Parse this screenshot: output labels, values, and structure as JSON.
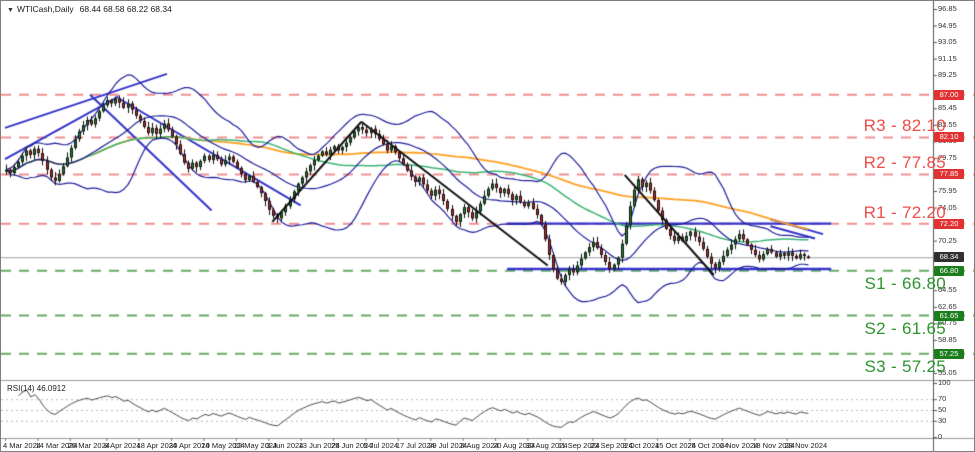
{
  "window": {
    "title_symbol": "WTICash,Daily",
    "title_ohlc": "68.44 68.58 68.22 68.34",
    "dropdown_icon": "▼"
  },
  "colors": {
    "bull_candle": "#1c8a2e",
    "bear_candle": "#cf2626",
    "candle_outline": "#111111",
    "bollinger": "#1f1f9e",
    "sma_fast": "#3cb371",
    "sma_slow": "#ffa022",
    "trendline_blue": "#3333cc",
    "trendline_black": "#111111",
    "resistance_dash": "#f19090",
    "support_dash": "#66ab66",
    "resistance_text": "#ef4d47",
    "support_text": "#2e9430",
    "resistance_badge": "#e03232",
    "support_badge": "#1c7d1c",
    "price_badge": "#303030",
    "current_price_line": "#9aa0a6",
    "rsi_line": "#4d4d4d",
    "axis_line": "#555555"
  },
  "axis": {
    "price_ticks": [
      96.85,
      94.95,
      93.05,
      91.15,
      89.25,
      85.45,
      83.55,
      81.65,
      79.75,
      75.95,
      74.05,
      70.25,
      64.55,
      62.65,
      60.75,
      58.85,
      55.05
    ],
    "badges": [
      {
        "text": "87.00",
        "price": 87.0,
        "type": "resistance"
      },
      {
        "text": "82.10",
        "price": 82.1,
        "type": "resistance"
      },
      {
        "text": "77.85",
        "price": 77.85,
        "type": "resistance"
      },
      {
        "text": "72.20",
        "price": 72.2,
        "type": "resistance"
      },
      {
        "text": "68.34",
        "price": 68.34,
        "type": "price"
      },
      {
        "text": "66.80",
        "price": 66.8,
        "type": "support"
      },
      {
        "text": "61.65",
        "price": 61.65,
        "type": "support"
      },
      {
        "text": "57.25",
        "price": 57.25,
        "type": "support"
      }
    ],
    "date_labels": [
      {
        "text": "4 Mar 2024",
        "index": 0
      },
      {
        "text": "14 Mar 2024",
        "index": 8
      },
      {
        "text": "26 Mar 2024",
        "index": 16
      },
      {
        "text": "8 Apr 2024",
        "index": 25
      },
      {
        "text": "18 Apr 2024",
        "index": 33
      },
      {
        "text": "30 Apr 2024",
        "index": 41
      },
      {
        "text": "10 May 2024",
        "index": 49
      },
      {
        "text": "22 May 2024",
        "index": 57
      },
      {
        "text": "3 Jun 2024",
        "index": 65
      },
      {
        "text": "13 Jun 2024",
        "index": 73
      },
      {
        "text": "25 Jun 2024",
        "index": 81
      },
      {
        "text": "5 Jul 2024",
        "index": 89
      },
      {
        "text": "17 Jul 2024",
        "index": 97
      },
      {
        "text": "29 Jul 2024",
        "index": 105
      },
      {
        "text": "8 Aug 2024",
        "index": 113
      },
      {
        "text": "20 Aug 2024",
        "index": 121
      },
      {
        "text": "30 Aug 2024",
        "index": 129
      },
      {
        "text": "11 Sep 2024",
        "index": 137
      },
      {
        "text": "23 Sep 2024",
        "index": 145
      },
      {
        "text": "3 Oct 2024",
        "index": 153
      },
      {
        "text": "15 Oct 2024",
        "index": 161
      },
      {
        "text": "25 Oct 2024",
        "index": 169
      },
      {
        "text": "6 Nov 2024",
        "index": 177
      },
      {
        "text": "18 Nov 2024",
        "index": 185
      },
      {
        "text": "28 Nov 2024",
        "index": 193
      }
    ]
  },
  "levels": {
    "r3": {
      "label": "R3 - 82.10",
      "price": 82.1,
      "type": "r"
    },
    "r2": {
      "label": "R2 - 77.85",
      "price": 77.85,
      "type": "r"
    },
    "r1": {
      "label": "R1 - 72.20",
      "price": 72.2,
      "type": "r"
    },
    "s1": {
      "label": "S1 - 66.80",
      "price": 66.8,
      "type": "s"
    },
    "s2": {
      "label": "S2 - 61.65",
      "price": 61.65,
      "type": "s"
    },
    "s3": {
      "label": "S3 - 57.25",
      "price": 57.25,
      "type": "s"
    }
  },
  "unlabeled_levels": [
    {
      "price": 87.0,
      "type": "r"
    }
  ],
  "rsi_panel": {
    "label": "RSI(14) 46.0912",
    "period": 14,
    "last_value": 46.0912,
    "scale_ticks": [
      100,
      70,
      50,
      30,
      0
    ],
    "dotted_levels": [
      70,
      50,
      30
    ]
  },
  "chart_data": {
    "type": "candlestick",
    "symbol": "WTI Cash",
    "timeframe": "Daily",
    "title": "WTICash,Daily",
    "last_ohlc": {
      "open": 68.44,
      "high": 68.58,
      "low": 68.22,
      "close": 68.34
    },
    "current_price": 68.34,
    "price_range": [
      55.05,
      96.85
    ],
    "closes": [
      78.4,
      78.0,
      78.7,
      79.3,
      80.0,
      80.6,
      80.1,
      80.8,
      80.3,
      79.4,
      78.4,
      77.5,
      77.1,
      77.9,
      78.8,
      79.8,
      80.9,
      81.9,
      82.8,
      83.5,
      84.1,
      83.6,
      84.3,
      85.1,
      85.8,
      86.4,
      86.0,
      86.6,
      86.1,
      85.5,
      86.0,
      85.3,
      84.6,
      84.0,
      83.3,
      82.6,
      83.2,
      82.5,
      83.1,
      83.7,
      83.0,
      82.2,
      81.3,
      80.2,
      79.2,
      78.5,
      79.2,
      78.7,
      79.4,
      80.0,
      79.5,
      80.1,
      79.6,
      79.0,
      79.5,
      79.9,
      79.3,
      78.6,
      77.9,
      77.2,
      77.7,
      77.0,
      76.4,
      75.7,
      74.8,
      73.8,
      73.1,
      72.8,
      73.5,
      74.2,
      75.0,
      75.9,
      76.8,
      77.5,
      78.2,
      78.9,
      79.5,
      80.0,
      80.5,
      80.1,
      80.7,
      81.1,
      80.6,
      81.0,
      81.5,
      82.1,
      82.8,
      83.3,
      83.0,
      82.6,
      83.1,
      82.5,
      81.9,
      81.3,
      80.6,
      81.1,
      80.4,
      79.7,
      79.0,
      78.3,
      77.6,
      77.0,
      77.5,
      76.7,
      76.0,
      75.4,
      76.1,
      75.6,
      74.8,
      73.9,
      73.1,
      72.4,
      73.3,
      74.1,
      73.5,
      72.8,
      73.6,
      74.5,
      75.4,
      76.2,
      76.8,
      76.3,
      75.7,
      76.2,
      75.6,
      74.9,
      75.4,
      74.7,
      74.2,
      74.6,
      73.9,
      73.2,
      72.1,
      70.4,
      68.6,
      66.9,
      65.9,
      65.5,
      66.3,
      67.0,
      66.6,
      67.4,
      68.2,
      68.9,
      69.5,
      70.1,
      69.4,
      68.6,
      67.8,
      67.0,
      67.5,
      68.3,
      69.9,
      72.0,
      74.2,
      76.1,
      77.3,
      76.4,
      76.9,
      76.0,
      74.9,
      73.7,
      72.6,
      71.6,
      70.8,
      70.2,
      70.7,
      70.2,
      70.8,
      71.3,
      70.7,
      70.1,
      69.3,
      68.4,
      67.6,
      67.1,
      67.8,
      68.5,
      69.2,
      69.8,
      70.4,
      71.0,
      70.4,
      69.8,
      69.2,
      68.6,
      68.1,
      68.7,
      69.3,
      68.9,
      68.4,
      68.8,
      68.5,
      68.9,
      68.5,
      68.2,
      68.7,
      68.5,
      68.34
    ],
    "indicators": {
      "bollinger": {
        "period": 20,
        "deviation": 2
      },
      "sma_fast": {
        "period": 50
      },
      "sma_slow": {
        "period": 100
      },
      "rsi": {
        "period": 14
      }
    },
    "trendlines": [
      {
        "name": "ascending-channel-upper",
        "from": [
          0,
          83.2
        ],
        "to": [
          40,
          89.4
        ],
        "color": "blue",
        "width": 2
      },
      {
        "name": "ascending-channel-lower",
        "from": [
          0,
          79.6
        ],
        "to": [
          28,
          86.8
        ],
        "color": "blue",
        "width": 2
      },
      {
        "name": "descending-line-april-steep",
        "from": [
          21,
          87.0
        ],
        "to": [
          51,
          73.7
        ],
        "color": "blue",
        "width": 2
      },
      {
        "name": "descending-line-april-long",
        "from": [
          28,
          86.6
        ],
        "to": [
          73,
          74.3
        ],
        "color": "blue",
        "width": 2
      },
      {
        "name": "descending-mini-upper",
        "from": [
          189,
          72.7
        ],
        "to": [
          202,
          71.0
        ],
        "color": "blue",
        "width": 2
      },
      {
        "name": "descending-mini-lower",
        "from": [
          189,
          71.9
        ],
        "to": [
          200,
          70.5
        ],
        "color": "blue",
        "width": 2
      },
      {
        "name": "black-ascending-june-july",
        "from": [
          66,
          72.4
        ],
        "to": [
          88,
          83.9
        ],
        "color": "black",
        "width": 2
      },
      {
        "name": "black-descending-july-sep",
        "from": [
          88,
          83.9
        ],
        "to": [
          134,
          67.4
        ],
        "color": "black",
        "width": 2
      },
      {
        "name": "black-descending-oct-nov",
        "from": [
          153,
          77.8
        ],
        "to": [
          175,
          66.3
        ],
        "color": "black",
        "width": 2
      },
      {
        "name": "horizontal-resistance-7220",
        "from": [
          124,
          72.2
        ],
        "to": [
          204,
          72.2
        ],
        "color": "blue",
        "width": 2.4
      },
      {
        "name": "horizontal-support-6700",
        "from": [
          124,
          67.0
        ],
        "to": [
          204,
          67.0
        ],
        "color": "blue",
        "width": 2.4
      }
    ]
  }
}
